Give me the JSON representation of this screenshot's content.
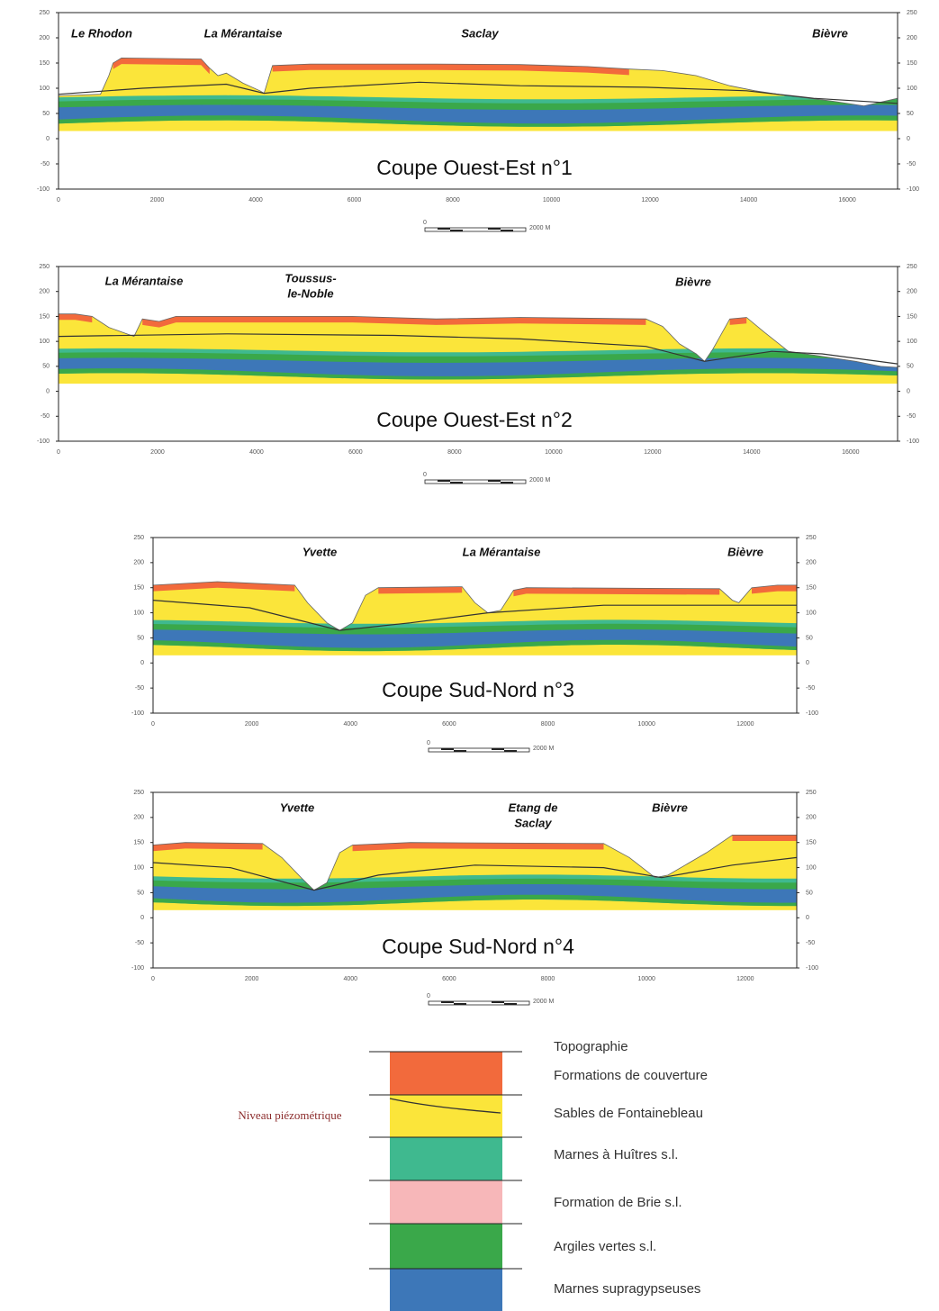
{
  "sections": [
    {
      "places": [
        [
          "Le Rhodon"
        ],
        [
          "La Mérantaise"
        ],
        [
          "Saclay"
        ],
        [
          "Bièvre"
        ]
      ],
      "title": "Coupe Ouest-Est n°1",
      "yticks": [
        "250",
        "200",
        "150",
        "100",
        "50",
        "0",
        "-50",
        "-100"
      ],
      "xticks": [
        "0",
        "2000",
        "4000",
        "6000",
        "8000",
        "10000",
        "12000",
        "14000",
        "16000"
      ],
      "scale_start": "0",
      "scale": "2000 M"
    },
    {
      "places": [
        [
          "La Mérantaise"
        ],
        [
          "Toussus-",
          "le-Noble"
        ],
        [
          "Bièvre"
        ]
      ],
      "title": "Coupe Ouest-Est n°2",
      "yticks": [
        "250",
        "200",
        "150",
        "100",
        "50",
        "0",
        "-50",
        "-100"
      ],
      "xticks": [
        "0",
        "2000",
        "4000",
        "6000",
        "8000",
        "10000",
        "12000",
        "14000",
        "16000"
      ],
      "scale_start": "0",
      "scale": "2000 M"
    },
    {
      "places": [
        [
          "Yvette"
        ],
        [
          "La Mérantaise"
        ],
        [
          "Bièvre"
        ]
      ],
      "title": "Coupe Sud-Nord n°3",
      "yticks": [
        "250",
        "200",
        "150",
        "100",
        "50",
        "0",
        "-50",
        "-100"
      ],
      "xticks": [
        "0",
        "2000",
        "4000",
        "6000",
        "8000",
        "10000",
        "12000"
      ],
      "scale_start": "0",
      "scale": "2000 M"
    },
    {
      "places": [
        [
          "Yvette"
        ],
        [
          "Etang de",
          "Saclay"
        ],
        [
          "Bièvre"
        ]
      ],
      "title": "Coupe Sud-Nord n°4",
      "yticks": [
        "250",
        "200",
        "150",
        "100",
        "50",
        "0",
        "-50",
        "-100"
      ],
      "xticks": [
        "0",
        "2000",
        "4000",
        "6000",
        "8000",
        "10000",
        "12000"
      ],
      "scale_start": "0",
      "scale": "2000 M"
    }
  ],
  "legend": {
    "items": [
      "Topographie",
      "Formations de couverture",
      "Sables de Fontainebleau",
      "Marnes à Huîtres s.l.",
      "Formation de Brie s.l.",
      "Argiles vertes s.l.",
      "Marnes supragypseuses"
    ],
    "piezo": "Niveau piézométrique"
  }
}
